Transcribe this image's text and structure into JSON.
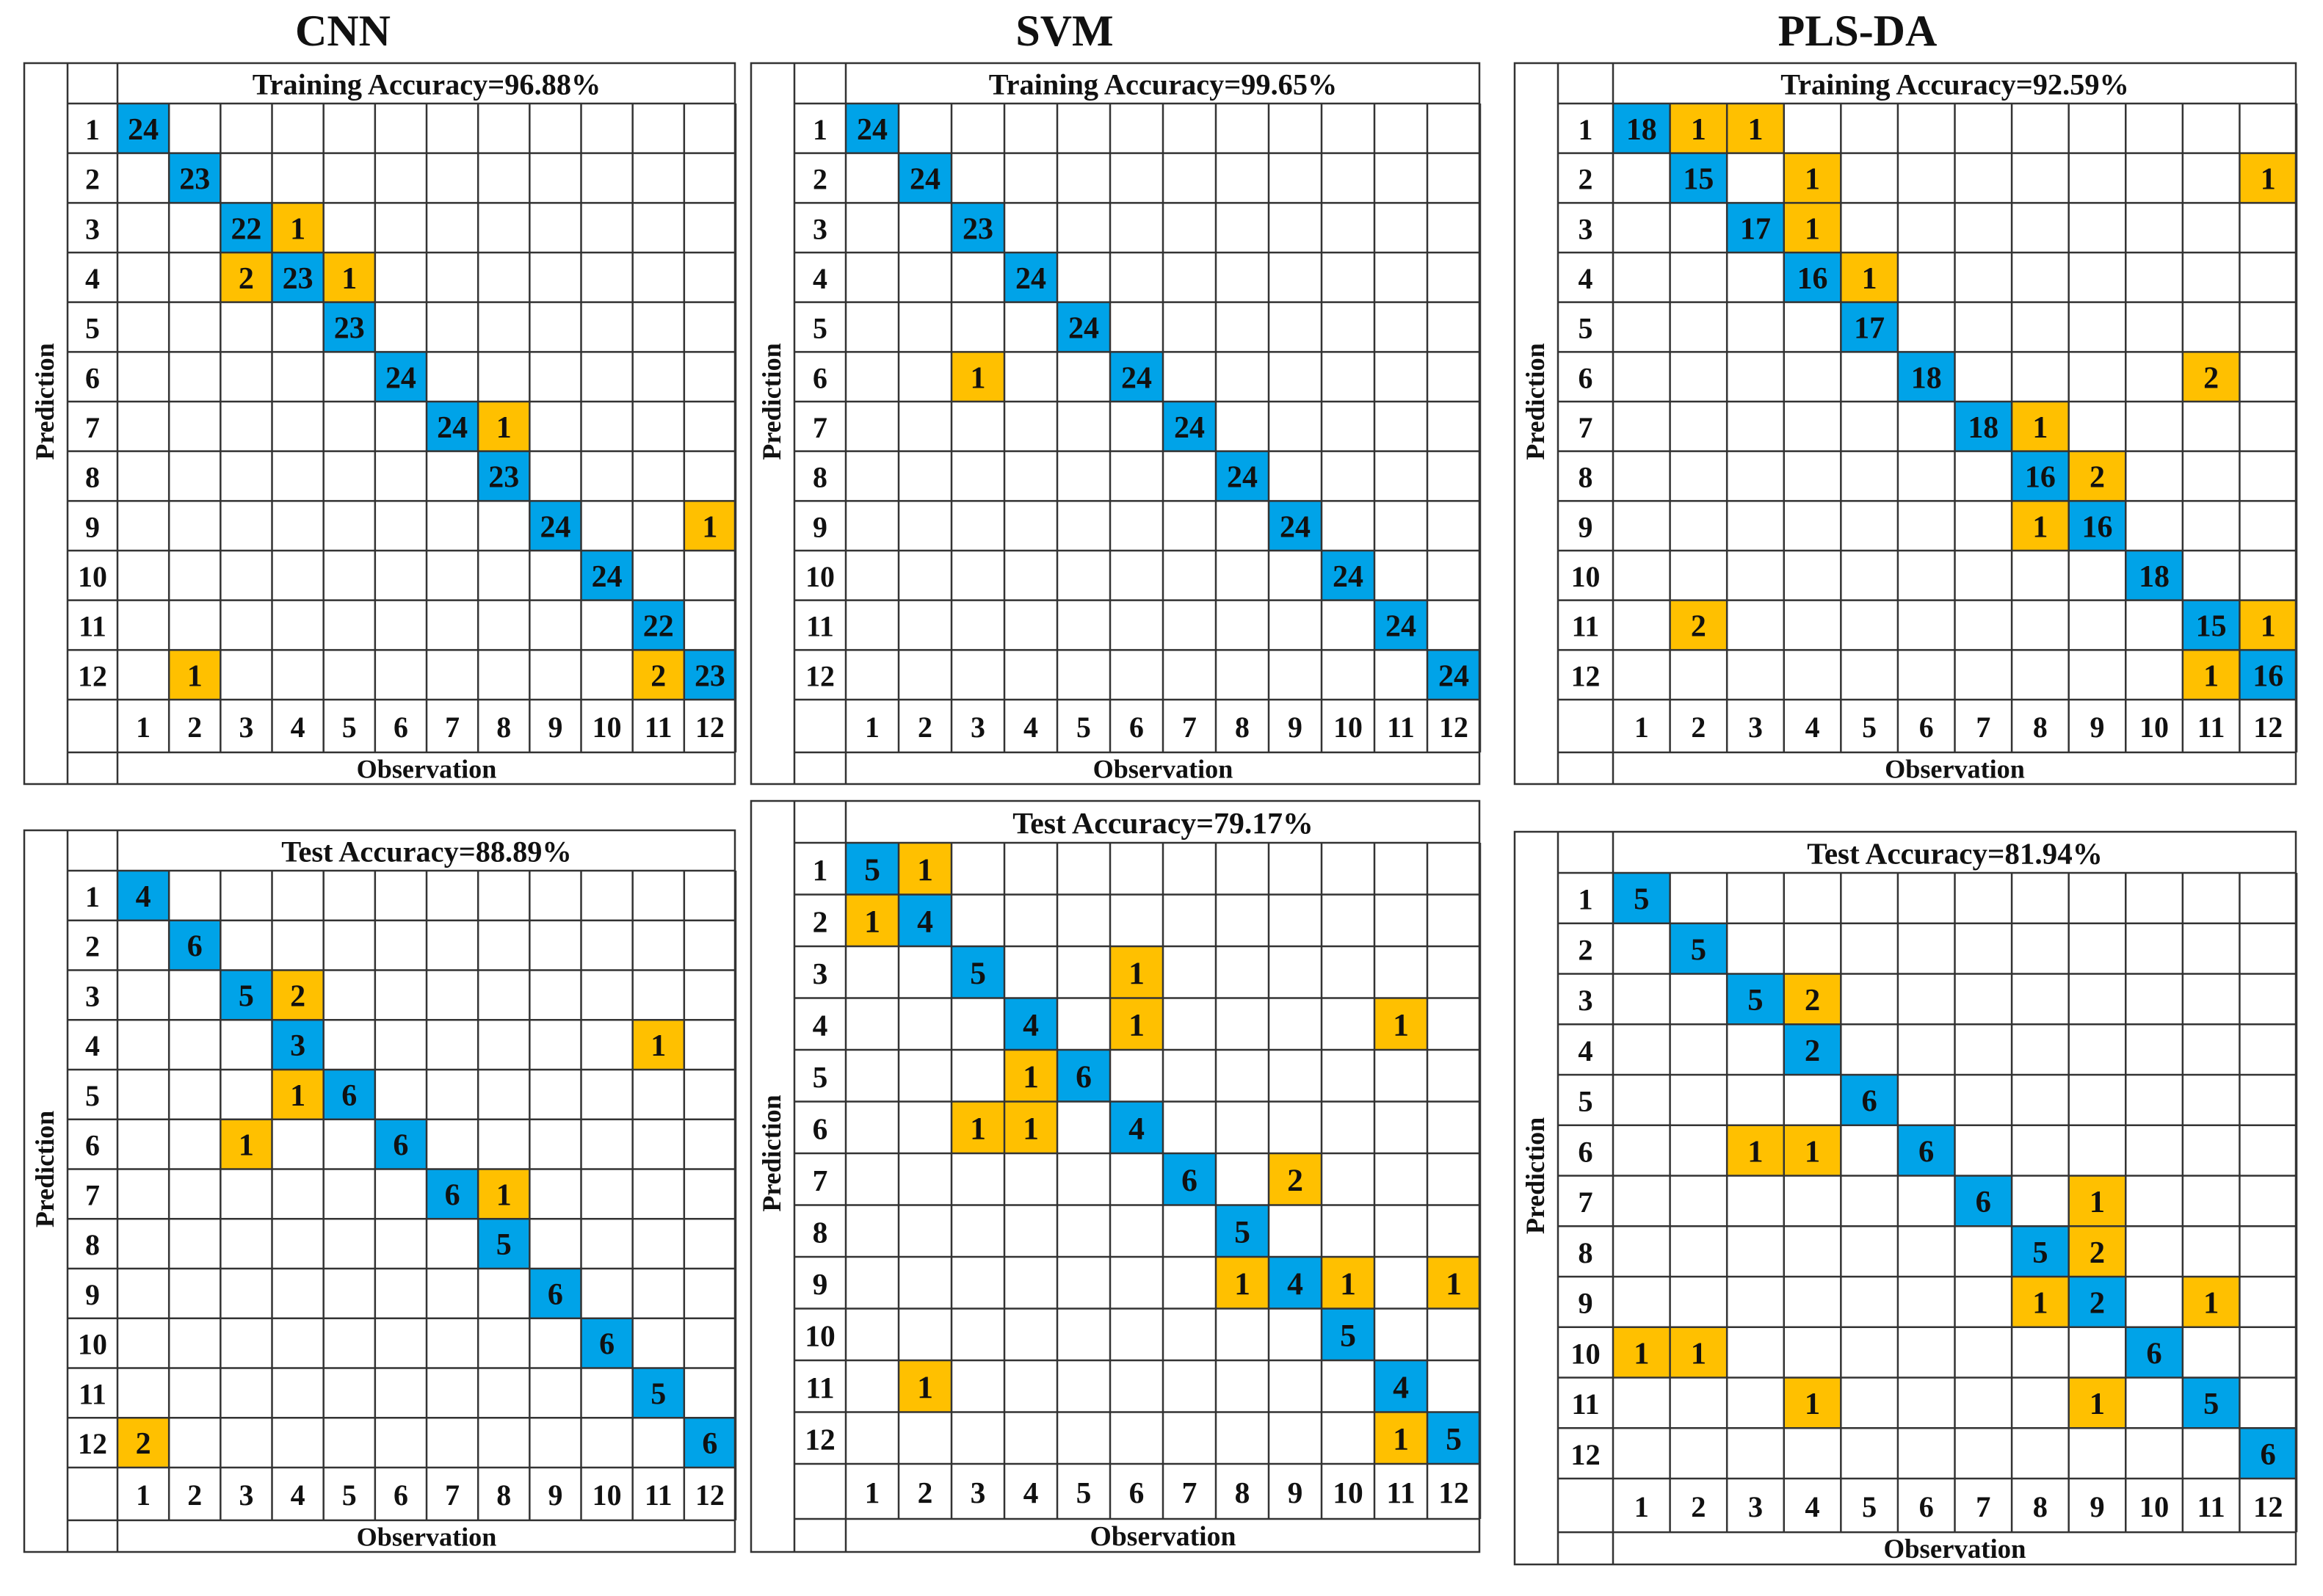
{
  "columns": [
    {
      "title": "CNN"
    },
    {
      "title": "SVM"
    },
    {
      "title": "PLS-DA"
    }
  ],
  "colors": {
    "diagonal": "#00A3E8",
    "off_diagonal": "#FFC000",
    "grid": "#333333"
  },
  "chart_data": [
    {
      "type": "heatmap",
      "model": "CNN",
      "title": "Training Accuracy=96.88%",
      "xlabel": "Observation",
      "ylabel": "Prediction",
      "categories": [
        "1",
        "2",
        "3",
        "4",
        "5",
        "6",
        "7",
        "8",
        "9",
        "10",
        "11",
        "12"
      ],
      "cells": [
        [
          1,
          1,
          24
        ],
        [
          2,
          2,
          23
        ],
        [
          3,
          3,
          22
        ],
        [
          3,
          4,
          1
        ],
        [
          4,
          3,
          2
        ],
        [
          4,
          4,
          23
        ],
        [
          4,
          5,
          1
        ],
        [
          5,
          5,
          23
        ],
        [
          6,
          6,
          24
        ],
        [
          7,
          7,
          24
        ],
        [
          7,
          8,
          1
        ],
        [
          8,
          8,
          23
        ],
        [
          9,
          9,
          24
        ],
        [
          9,
          12,
          1
        ],
        [
          10,
          10,
          24
        ],
        [
          11,
          11,
          22
        ],
        [
          12,
          2,
          1
        ],
        [
          12,
          11,
          2
        ],
        [
          12,
          12,
          23
        ]
      ]
    },
    {
      "type": "heatmap",
      "model": "SVM",
      "title": "Training Accuracy=99.65%",
      "xlabel": "Observation",
      "ylabel": "Prediction",
      "categories": [
        "1",
        "2",
        "3",
        "4",
        "5",
        "6",
        "7",
        "8",
        "9",
        "10",
        "11",
        "12"
      ],
      "cells": [
        [
          1,
          1,
          24
        ],
        [
          2,
          2,
          24
        ],
        [
          3,
          3,
          23
        ],
        [
          4,
          4,
          24
        ],
        [
          5,
          5,
          24
        ],
        [
          6,
          3,
          1
        ],
        [
          6,
          6,
          24
        ],
        [
          7,
          7,
          24
        ],
        [
          8,
          8,
          24
        ],
        [
          9,
          9,
          24
        ],
        [
          10,
          10,
          24
        ],
        [
          11,
          11,
          24
        ],
        [
          12,
          12,
          24
        ]
      ]
    },
    {
      "type": "heatmap",
      "model": "PLS-DA",
      "title": "Training Accuracy=92.59%",
      "xlabel": "Observation",
      "ylabel": "Prediction",
      "categories": [
        "1",
        "2",
        "3",
        "4",
        "5",
        "6",
        "7",
        "8",
        "9",
        "10",
        "11",
        "12"
      ],
      "cells": [
        [
          1,
          1,
          18
        ],
        [
          1,
          2,
          1
        ],
        [
          1,
          3,
          1
        ],
        [
          2,
          2,
          15
        ],
        [
          2,
          4,
          1
        ],
        [
          2,
          12,
          1
        ],
        [
          3,
          3,
          17
        ],
        [
          3,
          4,
          1
        ],
        [
          4,
          4,
          16
        ],
        [
          4,
          5,
          1
        ],
        [
          5,
          5,
          17
        ],
        [
          6,
          6,
          18
        ],
        [
          6,
          11,
          2
        ],
        [
          7,
          7,
          18
        ],
        [
          7,
          8,
          1
        ],
        [
          8,
          8,
          16
        ],
        [
          8,
          9,
          2
        ],
        [
          9,
          8,
          1
        ],
        [
          9,
          9,
          16
        ],
        [
          10,
          10,
          18
        ],
        [
          11,
          2,
          2
        ],
        [
          11,
          11,
          15
        ],
        [
          11,
          12,
          1
        ],
        [
          12,
          11,
          1
        ],
        [
          12,
          12,
          16
        ]
      ]
    },
    {
      "type": "heatmap",
      "model": "CNN",
      "title": "Test Accuracy=88.89%",
      "xlabel": "Observation",
      "ylabel": "Prediction",
      "categories": [
        "1",
        "2",
        "3",
        "4",
        "5",
        "6",
        "7",
        "8",
        "9",
        "10",
        "11",
        "12"
      ],
      "cells": [
        [
          1,
          1,
          4
        ],
        [
          2,
          2,
          6
        ],
        [
          3,
          3,
          5
        ],
        [
          3,
          4,
          2
        ],
        [
          4,
          4,
          3
        ],
        [
          4,
          11,
          1
        ],
        [
          5,
          4,
          1
        ],
        [
          5,
          5,
          6
        ],
        [
          6,
          3,
          1
        ],
        [
          6,
          6,
          6
        ],
        [
          7,
          7,
          6
        ],
        [
          7,
          8,
          1
        ],
        [
          8,
          8,
          5
        ],
        [
          9,
          9,
          6
        ],
        [
          10,
          10,
          6
        ],
        [
          11,
          11,
          5
        ],
        [
          12,
          1,
          2
        ],
        [
          12,
          12,
          6
        ]
      ]
    },
    {
      "type": "heatmap",
      "model": "SVM",
      "title": "Test Accuracy=79.17%",
      "xlabel": "Observation",
      "ylabel": "Prediction",
      "categories": [
        "1",
        "2",
        "3",
        "4",
        "5",
        "6",
        "7",
        "8",
        "9",
        "10",
        "11",
        "12"
      ],
      "cells": [
        [
          1,
          1,
          5
        ],
        [
          1,
          2,
          1
        ],
        [
          2,
          1,
          1
        ],
        [
          2,
          2,
          4
        ],
        [
          3,
          3,
          5
        ],
        [
          3,
          6,
          1
        ],
        [
          4,
          4,
          4
        ],
        [
          4,
          6,
          1
        ],
        [
          4,
          11,
          1
        ],
        [
          5,
          4,
          1
        ],
        [
          5,
          5,
          6
        ],
        [
          6,
          3,
          1
        ],
        [
          6,
          4,
          1
        ],
        [
          6,
          6,
          4
        ],
        [
          7,
          7,
          6
        ],
        [
          7,
          9,
          2
        ],
        [
          8,
          8,
          5
        ],
        [
          9,
          8,
          1
        ],
        [
          9,
          9,
          4
        ],
        [
          9,
          10,
          1
        ],
        [
          9,
          12,
          1
        ],
        [
          10,
          10,
          5
        ],
        [
          11,
          2,
          1
        ],
        [
          11,
          11,
          4
        ],
        [
          12,
          11,
          1
        ],
        [
          12,
          12,
          5
        ]
      ]
    },
    {
      "type": "heatmap",
      "model": "PLS-DA",
      "title": "Test Accuracy=81.94%",
      "xlabel": "Observation",
      "ylabel": "Prediction",
      "categories": [
        "1",
        "2",
        "3",
        "4",
        "5",
        "6",
        "7",
        "8",
        "9",
        "10",
        "11",
        "12"
      ],
      "cells": [
        [
          1,
          1,
          5
        ],
        [
          2,
          2,
          5
        ],
        [
          3,
          3,
          5
        ],
        [
          3,
          4,
          2
        ],
        [
          4,
          4,
          2
        ],
        [
          5,
          5,
          6
        ],
        [
          6,
          3,
          1
        ],
        [
          6,
          4,
          1
        ],
        [
          6,
          6,
          6
        ],
        [
          7,
          7,
          6
        ],
        [
          7,
          9,
          1
        ],
        [
          8,
          8,
          5
        ],
        [
          8,
          9,
          2
        ],
        [
          9,
          8,
          1
        ],
        [
          9,
          9,
          2
        ],
        [
          9,
          11,
          1
        ],
        [
          10,
          1,
          1
        ],
        [
          10,
          2,
          1
        ],
        [
          10,
          10,
          6
        ],
        [
          11,
          4,
          1
        ],
        [
          11,
          9,
          1
        ],
        [
          11,
          11,
          5
        ],
        [
          12,
          12,
          6
        ]
      ]
    }
  ]
}
